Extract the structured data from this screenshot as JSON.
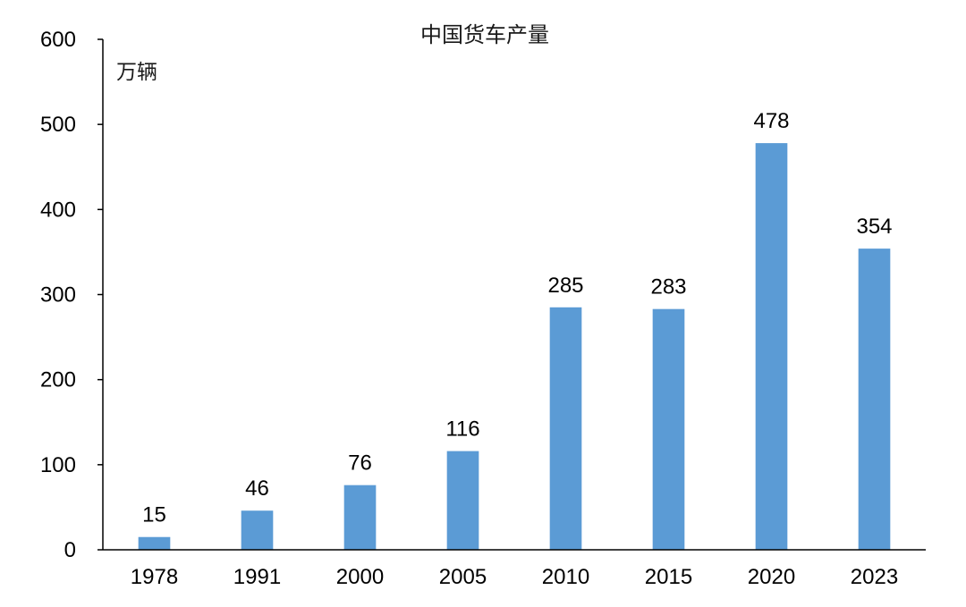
{
  "chart_data": {
    "type": "bar",
    "title": "中国货车产量",
    "ylabel": "万辆",
    "xlabel": "",
    "categories": [
      "1978",
      "1991",
      "2000",
      "2005",
      "2010",
      "2015",
      "2020",
      "2023"
    ],
    "values": [
      15,
      46,
      76,
      116,
      285,
      283,
      478,
      354
    ],
    "data_labels": [
      "15",
      "46",
      "76",
      "116",
      "285",
      "283",
      "478",
      "354"
    ],
    "ylim": [
      0,
      600
    ],
    "yticks": [
      0,
      100,
      200,
      300,
      400,
      500,
      600
    ],
    "ytick_labels": [
      "0",
      "100",
      "200",
      "300",
      "400",
      "500",
      "600"
    ],
    "grid": false,
    "legend": "none",
    "bar_color": "#5b9bd5"
  }
}
